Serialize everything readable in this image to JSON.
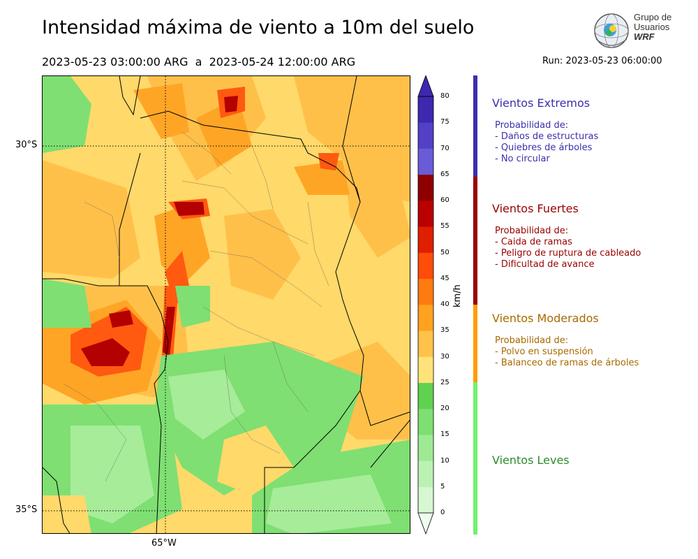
{
  "header": {
    "title": "Intensidad máxima de viento a 10m del suelo",
    "period": "2023-05-23 03:00:00 ARG  a  2023-05-24 12:00:00 ARG",
    "run": "Run: 2023-05-23 06:00:00"
  },
  "logo": {
    "line1": "Grupo de",
    "line2": "Usuarios",
    "line3": "WRF"
  },
  "map": {
    "lat_labels": [
      "30°S",
      "35°S"
    ],
    "lon_labels": [
      "65°W"
    ]
  },
  "colorbar": {
    "unit": "km/h",
    "ticks": [
      "0",
      "5",
      "10",
      "15",
      "20",
      "25",
      "30",
      "35",
      "40",
      "45",
      "50",
      "55",
      "60",
      "65",
      "70",
      "75",
      "80"
    ],
    "colors": [
      "#eefbee",
      "#d6f7d1",
      "#baf2b4",
      "#9eea94",
      "#7fdf72",
      "#5fd24f",
      "#ffe37a",
      "#ffc24a",
      "#ffa21f",
      "#ff7a10",
      "#ff4c08",
      "#e01e00",
      "#bb0000",
      "#8e0000",
      "#6a5bd8",
      "#5240c7",
      "#3e28b0"
    ]
  },
  "categories": [
    {
      "title": "Vientos Extremos",
      "color": "#3b2fae",
      "lines": [
        "Probabilidad de:",
        "- Daños de estructuras",
        "- Quiebres de árboles",
        "- No circular"
      ]
    },
    {
      "title": "Vientos Fuertes",
      "color": "#9a0000",
      "lines": [
        "Probabilidad de:",
        "- Caida de ramas",
        "- Peligro de ruptura de cableado",
        "- Dificultad de avance"
      ]
    },
    {
      "title": "Vientos Moderados",
      "color": "#a86a00",
      "lines": [
        "Probabilidad de:",
        "- Polvo en suspensión",
        "- Balanceo de ramas de árboles"
      ]
    },
    {
      "title": "Vientos Leves",
      "color": "#2e8b2e",
      "lines": []
    }
  ],
  "category_bar_colors": [
    "#3b2fae",
    "#9a0000",
    "#ff9d00",
    "#6ef26e"
  ]
}
